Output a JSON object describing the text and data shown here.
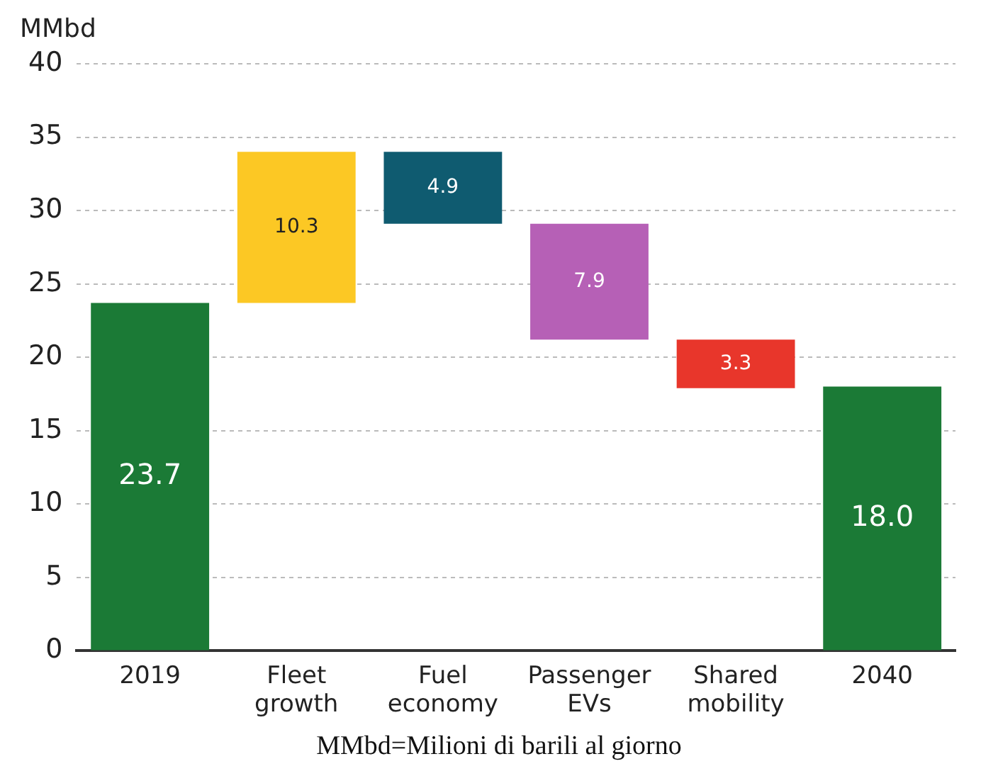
{
  "chart_data": {
    "type": "bar",
    "ylabel": "MMbd",
    "categories": [
      "2019",
      "Fleet growth",
      "Fuel economy",
      "Passenger EVs",
      "Shared mobility",
      "2040"
    ],
    "values": [
      23.7,
      10.3,
      4.9,
      7.9,
      3.3,
      18.0
    ],
    "base": [
      0,
      23.7,
      29.1,
      21.2,
      17.9,
      0
    ],
    "colors": [
      "#1b7a36",
      "#fcc824",
      "#0f5b70",
      "#b660b6",
      "#e8362b",
      "#1b7a36"
    ],
    "value_labels": [
      "23.7",
      "10.3",
      "4.9",
      "7.9",
      "3.3",
      "18.0"
    ],
    "ylim": [
      0,
      40
    ],
    "yticks": [
      0,
      5,
      10,
      15,
      20,
      25,
      30,
      35,
      40
    ],
    "grid": "y",
    "annotations": [
      "MMbd=Milioni di barili al giorno"
    ]
  }
}
